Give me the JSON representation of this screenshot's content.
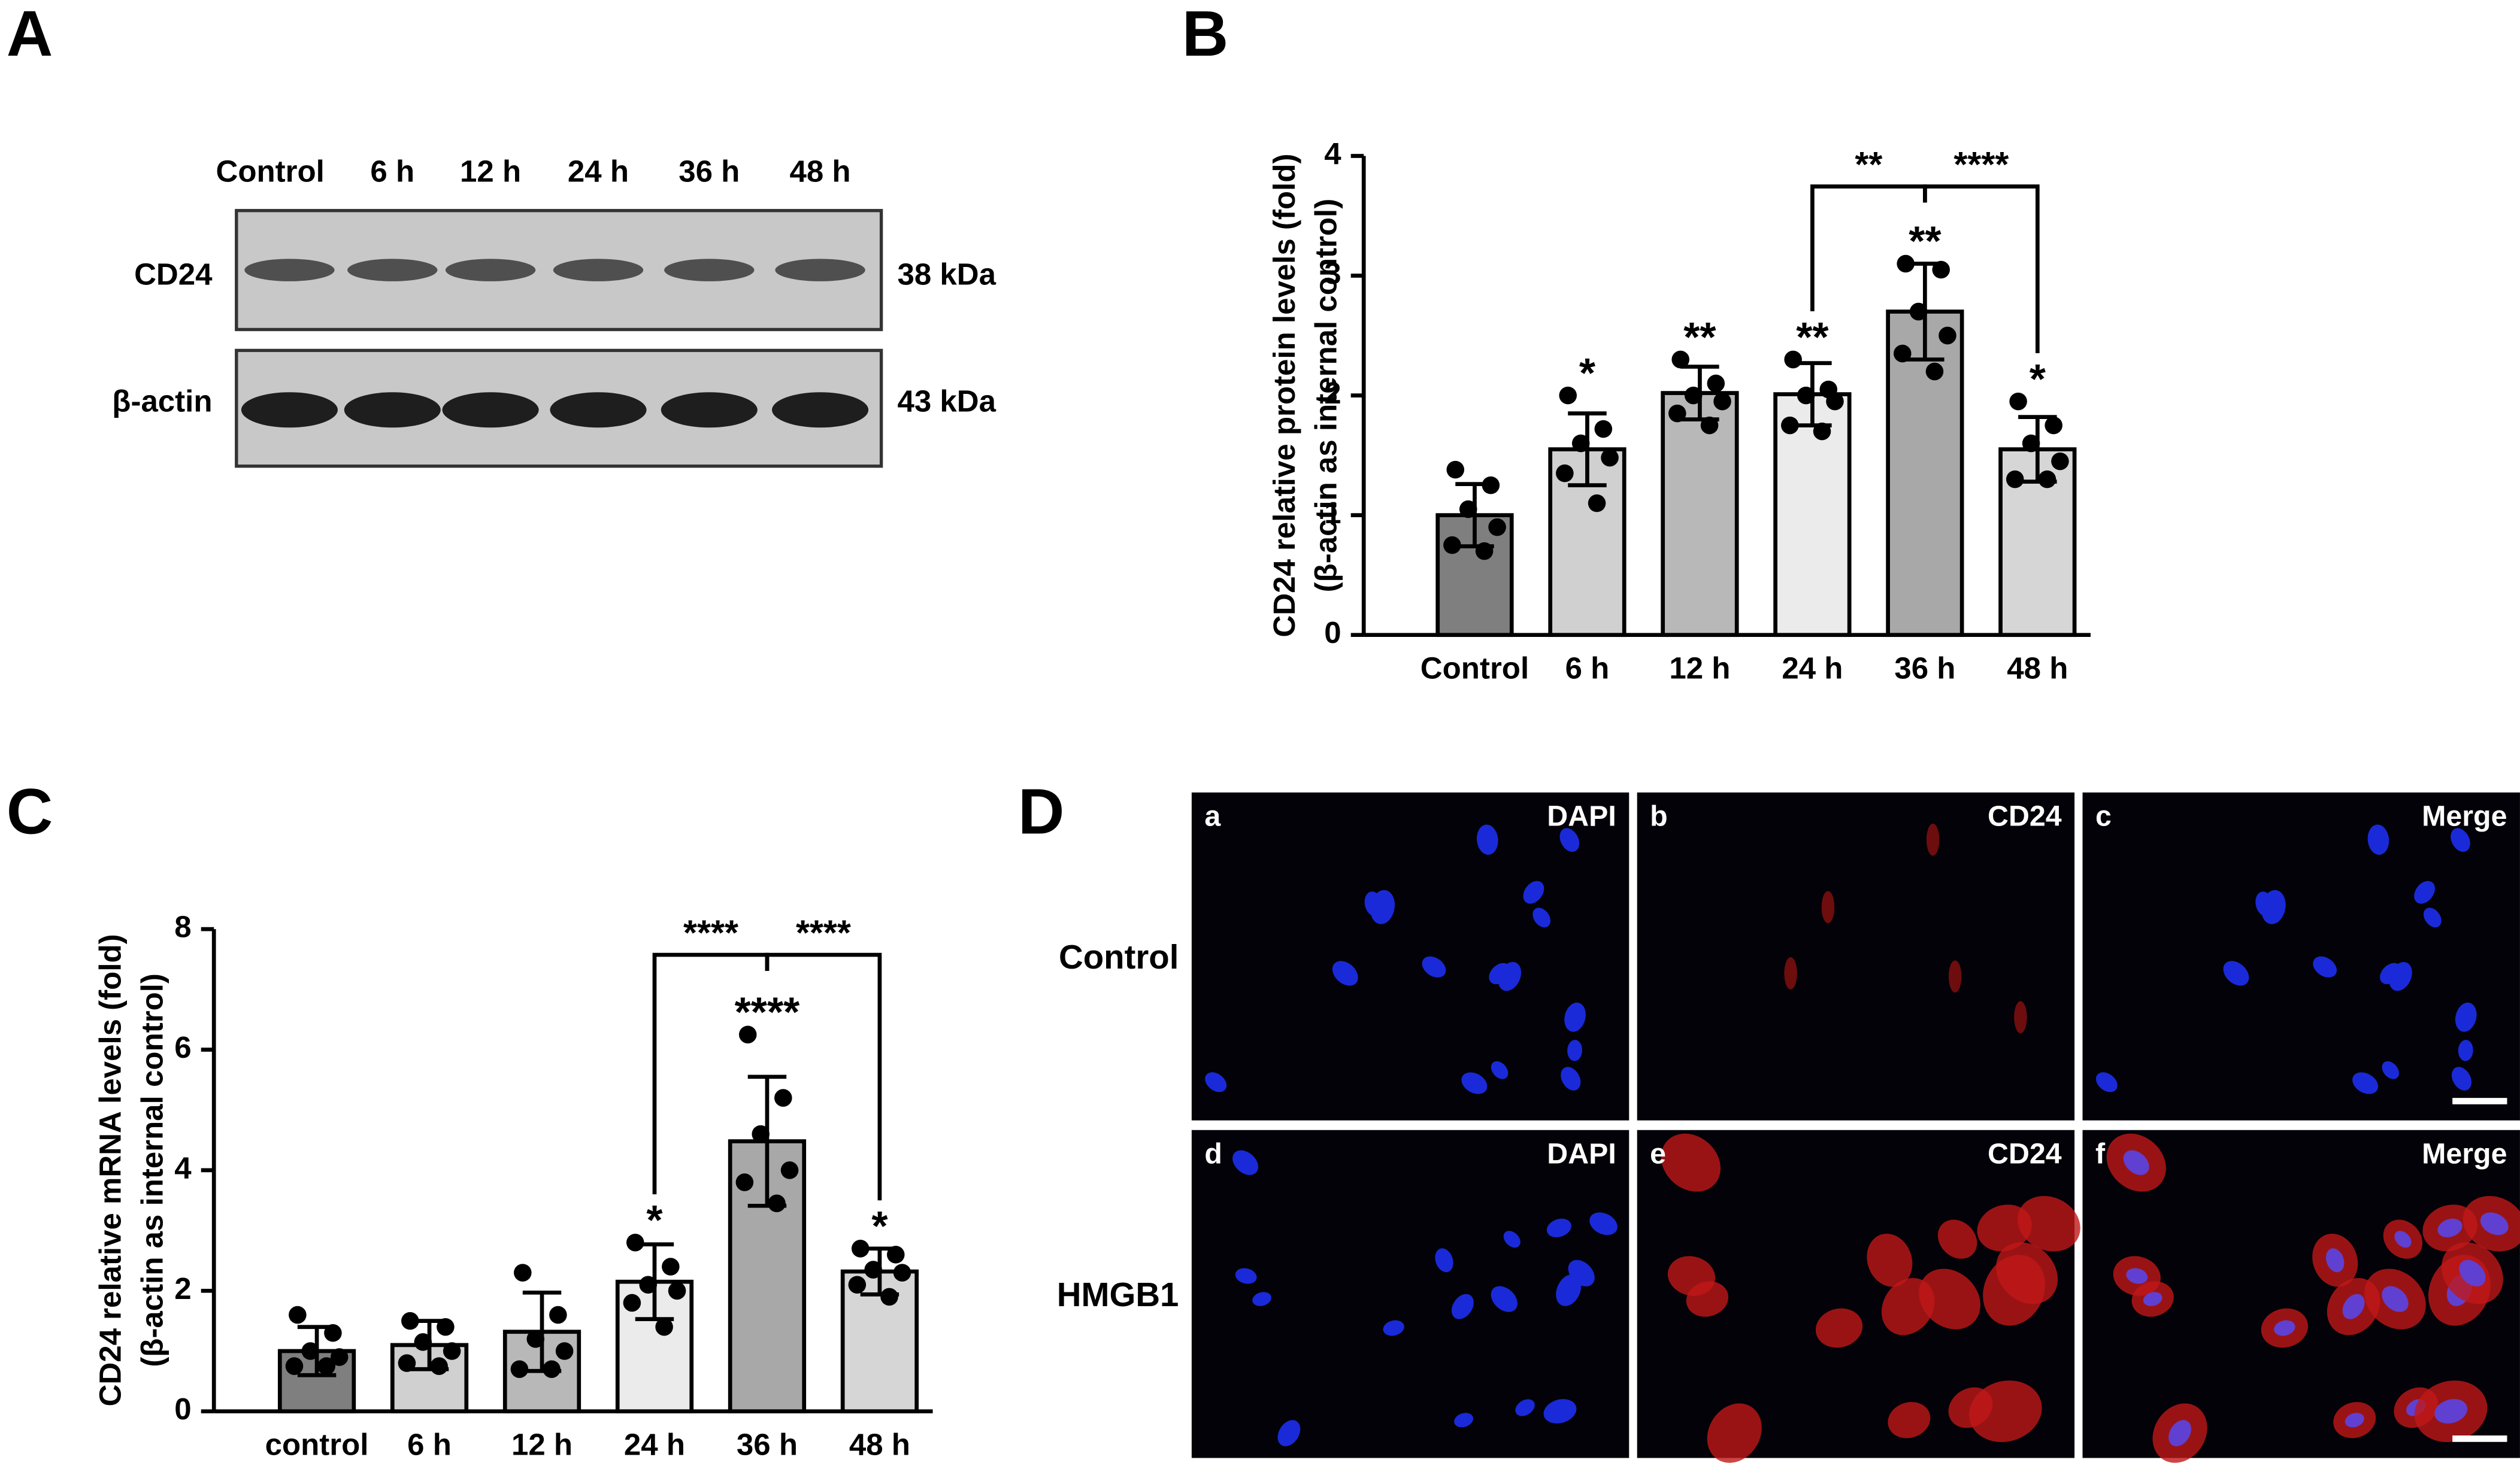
{
  "panel_labels": [
    "A",
    "B",
    "C",
    "D"
  ],
  "blot": {
    "lanes": [
      "Control",
      "6 h",
      "12 h",
      "24 h",
      "36 h",
      "48 h"
    ],
    "rows": [
      {
        "label": "CD24",
        "size": "38 kDa"
      },
      {
        "label": "β-actin",
        "size": "43 kDa"
      }
    ]
  },
  "chart_data": [
    {
      "type": "bar",
      "ylabel": [
        "CD24 relative protein levels (fold)",
        "(β-actin as internal control)"
      ],
      "categories": [
        "Control",
        "6 h",
        "12 h",
        "24 h",
        "36 h",
        "48 h"
      ],
      "values": [
        1.0,
        1.55,
        2.02,
        2.01,
        2.7,
        1.55
      ],
      "errors": [
        0.26,
        0.3,
        0.22,
        0.26,
        0.4,
        0.27
      ],
      "points": [
        [
          1.38,
          1.25,
          1.05,
          0.9,
          0.75,
          0.7
        ],
        [
          2.0,
          1.72,
          1.6,
          1.48,
          1.35,
          1.1
        ],
        [
          2.3,
          2.1,
          2.0,
          1.95,
          1.85,
          1.75
        ],
        [
          2.3,
          2.05,
          2.0,
          1.95,
          1.75,
          1.7
        ],
        [
          3.1,
          3.05,
          2.7,
          2.5,
          2.35,
          2.2
        ],
        [
          1.95,
          1.75,
          1.6,
          1.45,
          1.3,
          1.3
        ]
      ],
      "colors": [
        "#7f7f7f",
        "#d0d0d0",
        "#b8b8b8",
        "#ebebeb",
        "#a8a8a8",
        "#d6d6d6"
      ],
      "annotations": [
        null,
        "*",
        "**",
        "**",
        "**",
        "*"
      ],
      "brackets": [
        {
          "from": 3,
          "to": 4,
          "label": "**"
        },
        {
          "from": 4,
          "to": 5,
          "label": "****"
        }
      ],
      "ylim": [
        0,
        4
      ],
      "yticks": [
        0,
        1,
        2,
        3,
        4
      ]
    },
    {
      "type": "bar",
      "ylabel": [
        "CD24 relative mRNA levels (fold)",
        "(β-actin as internal control)"
      ],
      "categories": [
        "control",
        "6 h",
        "12 h",
        "24 h",
        "36 h",
        "48 h"
      ],
      "values": [
        1.0,
        1.1,
        1.32,
        2.15,
        4.48,
        2.32
      ],
      "errors": [
        0.4,
        0.4,
        0.65,
        0.62,
        1.07,
        0.38
      ],
      "points": [
        [
          1.6,
          1.3,
          1.0,
          0.9,
          0.75,
          0.75
        ],
        [
          1.5,
          1.4,
          1.15,
          1.0,
          0.8,
          0.75
        ],
        [
          2.3,
          1.6,
          1.2,
          1.0,
          0.7,
          0.7
        ],
        [
          2.8,
          2.4,
          2.1,
          2.0,
          1.8,
          1.4
        ],
        [
          6.25,
          5.2,
          4.6,
          4.0,
          3.8,
          3.45
        ],
        [
          2.7,
          2.6,
          2.35,
          2.3,
          2.1,
          1.9
        ]
      ],
      "colors": [
        "#7f7f7f",
        "#d0d0d0",
        "#b8b8b8",
        "#ebebeb",
        "#a8a8a8",
        "#d6d6d6"
      ],
      "annotations": [
        null,
        null,
        null,
        "*",
        "****",
        "*"
      ],
      "brackets": [
        {
          "from": 3,
          "to": 4,
          "label": "****"
        },
        {
          "from": 4,
          "to": 5,
          "label": "****"
        }
      ],
      "ylim": [
        0,
        8
      ],
      "yticks": [
        0,
        2,
        4,
        6,
        8
      ]
    }
  ],
  "micrographs": {
    "rows": [
      "Control",
      "HMGB1"
    ],
    "tiles": [
      [
        "a",
        "DAPI"
      ],
      [
        "b",
        "CD24"
      ],
      [
        "c",
        "Merge"
      ],
      [
        "d",
        "DAPI"
      ],
      [
        "e",
        "CD24"
      ],
      [
        "f",
        "Merge"
      ]
    ]
  }
}
